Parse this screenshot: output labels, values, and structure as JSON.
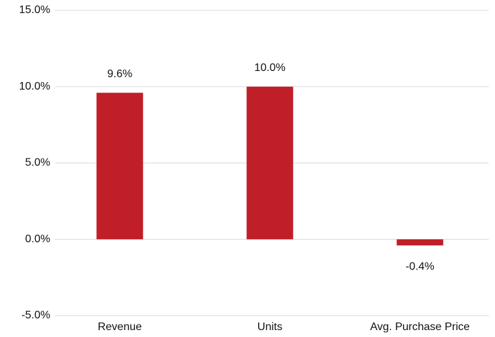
{
  "chart_data": {
    "type": "bar",
    "categories": [
      "Revenue",
      "Units",
      "Avg. Purchase Price"
    ],
    "values": [
      9.6,
      10.0,
      -0.4
    ],
    "value_labels": [
      "9.6%",
      "10.0%",
      "-0.4%"
    ],
    "color": "#c01f28",
    "ylim": [
      -5,
      15
    ],
    "yticks": [
      {
        "value": -5,
        "label": "-5.0%"
      },
      {
        "value": 0,
        "label": "0.0%"
      },
      {
        "value": 5,
        "label": "5.0%"
      },
      {
        "value": 10,
        "label": "10.0%"
      },
      {
        "value": 15,
        "label": "15.0%"
      }
    ],
    "grid": true
  }
}
